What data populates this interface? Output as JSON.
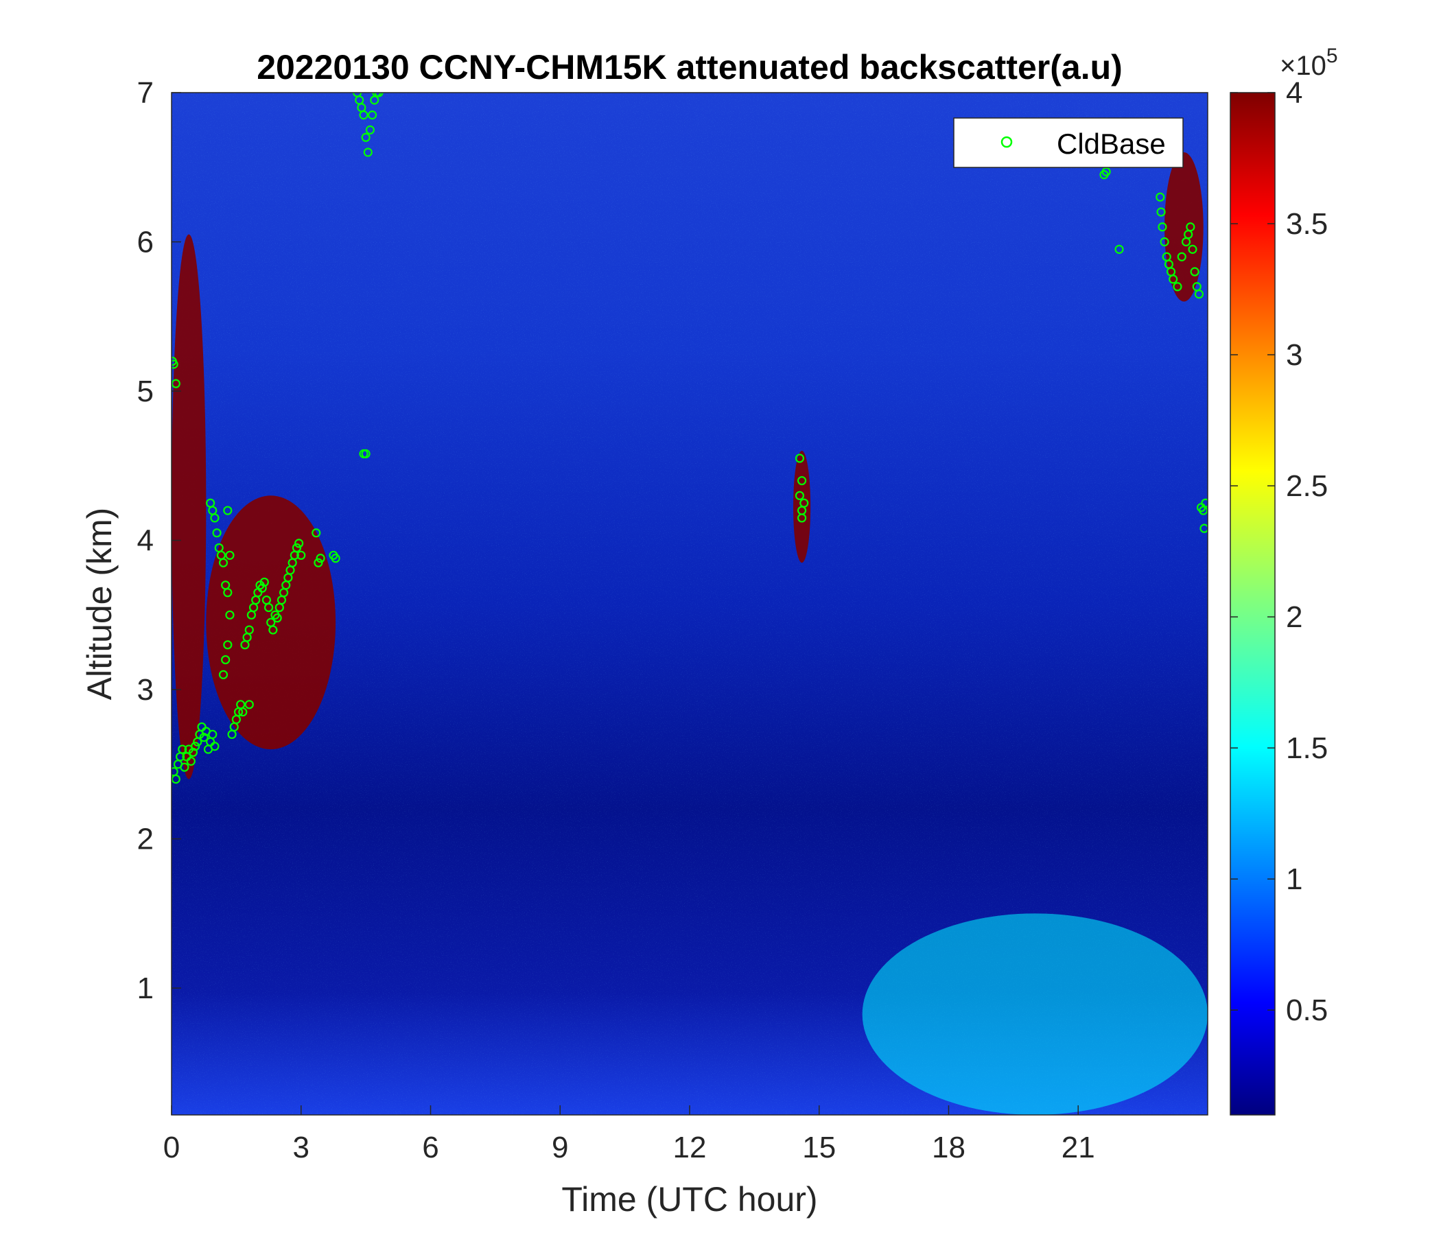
{
  "chart_data": {
    "type": "heatmap",
    "title": "20220130 CCNY-CHM15K attenuated backscatter(a.u)",
    "xlabel": "Time (UTC hour)",
    "ylabel": "Altitude (km)",
    "xlim": [
      0,
      24
    ],
    "ylim": [
      0.15,
      7
    ],
    "x_ticks": [
      0,
      3,
      6,
      9,
      12,
      15,
      18,
      21
    ],
    "x_tick_labels": [
      "0",
      "3",
      "6",
      "9",
      "12",
      "15",
      "18",
      "21"
    ],
    "y_ticks": [
      1,
      2,
      3,
      4,
      5,
      6,
      7
    ],
    "y_tick_labels": [
      "1",
      "2",
      "3",
      "4",
      "5",
      "6",
      "7"
    ],
    "colorbar": {
      "colormap": "jet",
      "clim": [
        10000,
        400000
      ],
      "ticks": [
        50000,
        100000,
        150000,
        200000,
        250000,
        300000,
        350000,
        400000
      ],
      "tick_labels": [
        "0.5",
        "1",
        "1.5",
        "2",
        "2.5",
        "3",
        "3.5",
        "4"
      ],
      "exponent_label": "×10",
      "exponent_power": "5"
    },
    "legend": {
      "location": "top-right",
      "entries": [
        {
          "name": "CldBase",
          "marker": "circle",
          "color": "#00ff00"
        }
      ]
    },
    "cloud_features": [
      {
        "desc": "thick cloud",
        "x": [
          0.0,
          0.8
        ],
        "y": [
          2.4,
          6.05
        ],
        "level": 1.0
      },
      {
        "desc": "cloud band",
        "x": [
          0.8,
          3.8
        ],
        "y": [
          2.6,
          4.3
        ],
        "level": 1.0
      },
      {
        "desc": "thin cloud",
        "x": [
          14.4,
          14.8
        ],
        "y": [
          3.85,
          4.6
        ],
        "level": 1.0
      },
      {
        "desc": "cloud",
        "x": [
          23.0,
          23.9
        ],
        "y": [
          5.6,
          6.6
        ],
        "level": 1.0
      },
      {
        "desc": "boundary layer aerosol",
        "x": [
          16.0,
          24.0
        ],
        "y": [
          0.15,
          1.5
        ],
        "level": 0.35
      }
    ],
    "series": [
      {
        "name": "CldBase",
        "type": "scatter",
        "points": [
          [
            0.02,
            5.2
          ],
          [
            0.05,
            5.18
          ],
          [
            0.1,
            5.05
          ],
          [
            0.05,
            2.45
          ],
          [
            0.1,
            2.4
          ],
          [
            0.15,
            2.5
          ],
          [
            0.2,
            2.55
          ],
          [
            0.25,
            2.6
          ],
          [
            0.3,
            2.48
          ],
          [
            0.35,
            2.55
          ],
          [
            0.4,
            2.6
          ],
          [
            0.45,
            2.52
          ],
          [
            0.5,
            2.58
          ],
          [
            0.55,
            2.62
          ],
          [
            0.6,
            2.65
          ],
          [
            0.65,
            2.7
          ],
          [
            0.7,
            2.75
          ],
          [
            0.75,
            2.68
          ],
          [
            0.8,
            2.72
          ],
          [
            0.85,
            2.6
          ],
          [
            0.9,
            2.65
          ],
          [
            0.95,
            2.7
          ],
          [
            1.0,
            2.62
          ],
          [
            0.9,
            4.25
          ],
          [
            0.95,
            4.2
          ],
          [
            1.0,
            4.15
          ],
          [
            1.05,
            4.05
          ],
          [
            1.1,
            3.95
          ],
          [
            1.15,
            3.9
          ],
          [
            1.2,
            3.85
          ],
          [
            1.25,
            3.7
          ],
          [
            1.3,
            3.65
          ],
          [
            1.35,
            3.5
          ],
          [
            1.3,
            3.3
          ],
          [
            1.25,
            3.2
          ],
          [
            1.2,
            3.1
          ],
          [
            1.3,
            4.2
          ],
          [
            1.35,
            3.9
          ],
          [
            1.4,
            2.7
          ],
          [
            1.45,
            2.75
          ],
          [
            1.5,
            2.8
          ],
          [
            1.55,
            2.85
          ],
          [
            1.6,
            2.9
          ],
          [
            1.65,
            2.85
          ],
          [
            1.7,
            3.3
          ],
          [
            1.75,
            3.35
          ],
          [
            1.8,
            3.4
          ],
          [
            1.85,
            3.5
          ],
          [
            1.9,
            3.55
          ],
          [
            1.95,
            3.6
          ],
          [
            2.0,
            3.65
          ],
          [
            2.05,
            3.7
          ],
          [
            2.1,
            3.68
          ],
          [
            2.15,
            3.72
          ],
          [
            2.2,
            3.6
          ],
          [
            2.25,
            3.55
          ],
          [
            2.3,
            3.45
          ],
          [
            2.35,
            3.4
          ],
          [
            2.4,
            3.5
          ],
          [
            2.45,
            3.48
          ],
          [
            2.5,
            3.55
          ],
          [
            2.55,
            3.6
          ],
          [
            2.6,
            3.65
          ],
          [
            2.65,
            3.7
          ],
          [
            2.7,
            3.75
          ],
          [
            2.75,
            3.8
          ],
          [
            2.8,
            3.85
          ],
          [
            2.85,
            3.9
          ],
          [
            2.9,
            3.95
          ],
          [
            2.95,
            3.98
          ],
          [
            3.0,
            3.9
          ],
          [
            3.35,
            4.05
          ],
          [
            3.4,
            3.85
          ],
          [
            3.45,
            3.88
          ],
          [
            3.75,
            3.9
          ],
          [
            3.8,
            3.88
          ],
          [
            1.8,
            2.9
          ],
          [
            4.3,
            7.0
          ],
          [
            4.35,
            6.95
          ],
          [
            4.4,
            6.9
          ],
          [
            4.45,
            6.85
          ],
          [
            4.5,
            6.7
          ],
          [
            4.55,
            6.6
          ],
          [
            4.6,
            6.75
          ],
          [
            4.65,
            6.85
          ],
          [
            4.7,
            6.95
          ],
          [
            4.75,
            7.0
          ],
          [
            4.8,
            7.0
          ],
          [
            4.45,
            4.58
          ],
          [
            4.5,
            4.58
          ],
          [
            14.55,
            4.55
          ],
          [
            14.6,
            4.4
          ],
          [
            14.55,
            4.3
          ],
          [
            14.6,
            4.2
          ],
          [
            14.65,
            4.25
          ],
          [
            14.6,
            4.15
          ],
          [
            21.6,
            6.45
          ],
          [
            21.65,
            6.47
          ],
          [
            21.95,
            5.95
          ],
          [
            22.9,
            6.3
          ],
          [
            22.92,
            6.2
          ],
          [
            22.95,
            6.1
          ],
          [
            23.0,
            6.0
          ],
          [
            23.05,
            5.9
          ],
          [
            23.1,
            5.85
          ],
          [
            23.15,
            5.8
          ],
          [
            23.2,
            5.75
          ],
          [
            23.3,
            5.7
          ],
          [
            23.4,
            5.9
          ],
          [
            23.5,
            6.0
          ],
          [
            23.55,
            6.05
          ],
          [
            23.6,
            6.1
          ],
          [
            23.65,
            5.95
          ],
          [
            23.7,
            5.8
          ],
          [
            23.75,
            5.7
          ],
          [
            23.8,
            5.65
          ],
          [
            23.85,
            4.22
          ],
          [
            23.9,
            4.2
          ],
          [
            23.95,
            4.25
          ],
          [
            23.92,
            4.08
          ]
        ]
      }
    ]
  }
}
